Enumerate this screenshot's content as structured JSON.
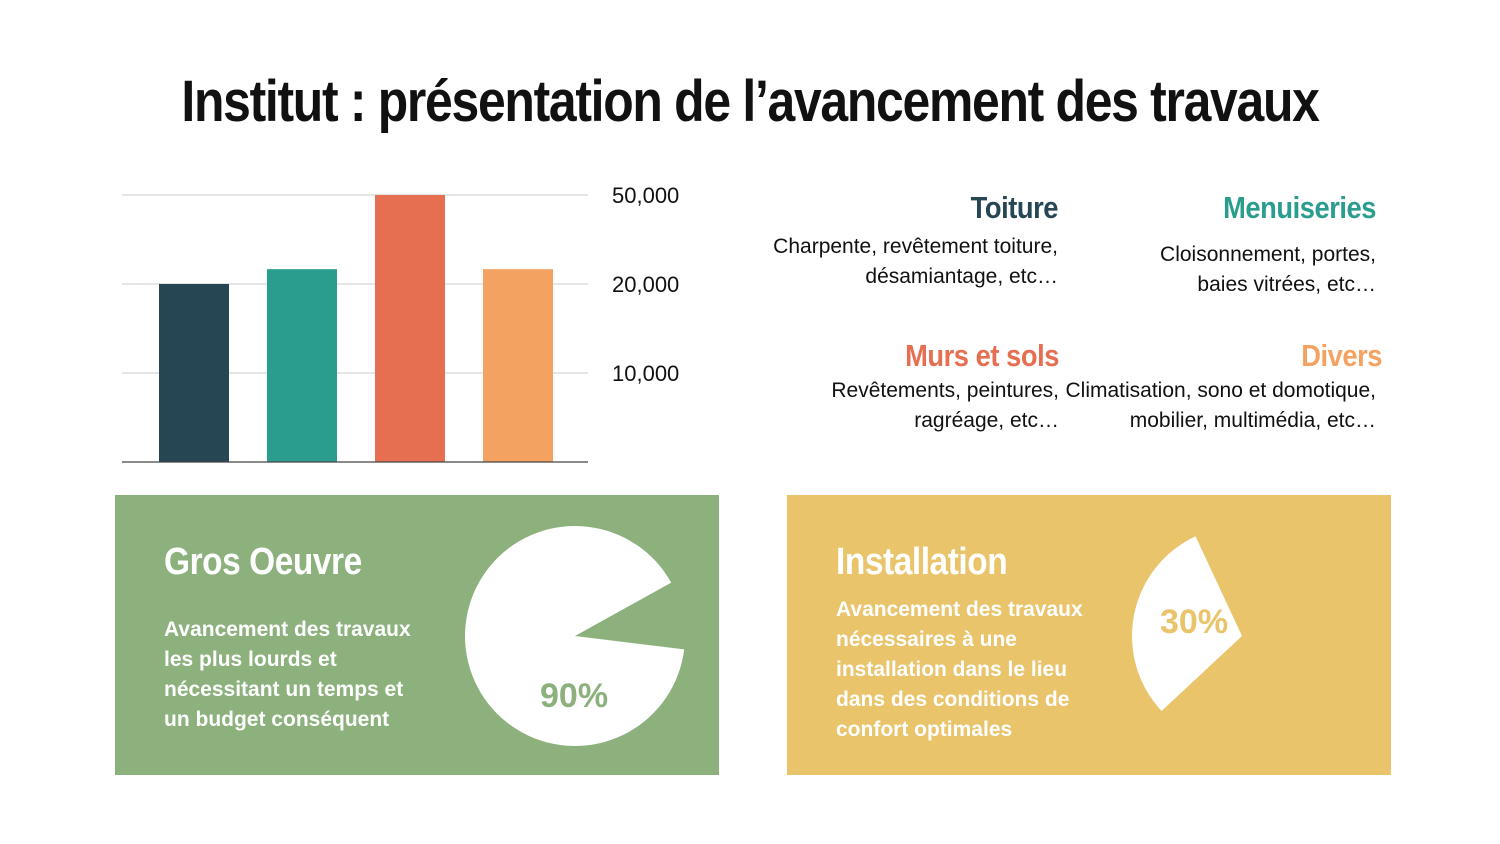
{
  "title": "Institut : présentation de l’avancement des travaux",
  "chart_data": {
    "type": "bar",
    "categories": [
      "",
      "",
      "",
      ""
    ],
    "values": [
      20000,
      25000,
      50000,
      25000
    ],
    "colors": [
      "#264653",
      "#2a9d8f",
      "#e76f51",
      "#f4a261"
    ],
    "y_ticks": [
      {
        "value": 10000,
        "label": "10,000"
      },
      {
        "value": 20000,
        "label": "20,000"
      },
      {
        "value": 50000,
        "label": "50,000"
      }
    ],
    "y_axis_side": "right",
    "grid": true
  },
  "categories": [
    {
      "title": "Toiture",
      "color": "#264653",
      "text": "Charpente, revêtement toiture, désamiantage, etc…"
    },
    {
      "title": "Menuiseries",
      "color": "#2a9d8f",
      "text": "Cloisonnement, portes, baies vitrées, etc…"
    },
    {
      "title": "Murs et sols",
      "color": "#e76f51",
      "text": "Revêtements, peintures, ragréage, etc…"
    },
    {
      "title": "Divers",
      "color": "#f4a261",
      "text": "Climatisation, sono et domotique, mobilier, multimédia, etc…"
    }
  ],
  "panels": {
    "gros_oeuvre": {
      "title": "Gros Oeuvre",
      "text": "Avancement des travaux les plus lourds et nécessitant un temps et un budget conséquent",
      "percent_label": "90%",
      "percent": 90,
      "bg": "#8cb17d"
    },
    "installation": {
      "title": "Installation",
      "text": "Avancement des travaux nécessaires à une installation dans le lieu dans des conditions de confort optimales",
      "percent_label": "30%",
      "percent": 30,
      "bg": "#e9c46a"
    }
  }
}
